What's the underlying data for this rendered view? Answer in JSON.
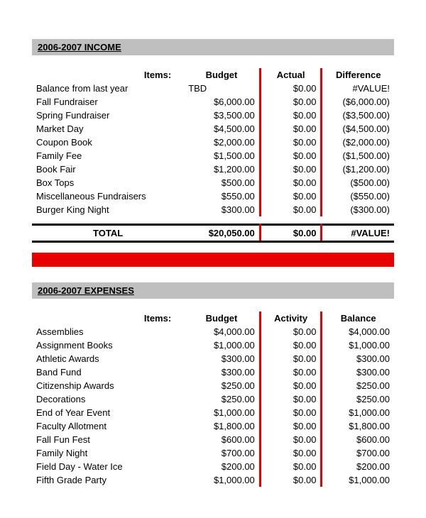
{
  "income": {
    "header": "2006-2007 INCOME",
    "columns": {
      "items": "Items:",
      "budget": "Budget",
      "actual": "Actual",
      "diff": "Difference"
    },
    "rows": [
      {
        "name": "Balance from last year",
        "budget": "TBD",
        "actual": "$0.00",
        "diff": "#VALUE!"
      },
      {
        "name": "Fall Fundraiser",
        "budget": "$6,000.00",
        "actual": "$0.00",
        "diff": "($6,000.00)"
      },
      {
        "name": "Spring Fundraiser",
        "budget": "$3,500.00",
        "actual": "$0.00",
        "diff": "($3,500.00)"
      },
      {
        "name": "Market Day",
        "budget": "$4,500.00",
        "actual": "$0.00",
        "diff": "($4,500.00)"
      },
      {
        "name": "Coupon Book",
        "budget": "$2,000.00",
        "actual": "$0.00",
        "diff": "($2,000.00)"
      },
      {
        "name": "Family Fee",
        "budget": "$1,500.00",
        "actual": "$0.00",
        "diff": "($1,500.00)"
      },
      {
        "name": "Book Fair",
        "budget": "$1,200.00",
        "actual": "$0.00",
        "diff": "($1,200.00)"
      },
      {
        "name": "Box Tops",
        "budget": "$500.00",
        "actual": "$0.00",
        "diff": "($500.00)"
      },
      {
        "name": "Miscellaneous Fundraisers",
        "budget": "$550.00",
        "actual": "$0.00",
        "diff": "($550.00)"
      },
      {
        "name": "Burger King Night",
        "budget": "$300.00",
        "actual": "$0.00",
        "diff": "($300.00)"
      }
    ],
    "total": {
      "label": "TOTAL",
      "budget": "$20,050.00",
      "actual": "$0.00",
      "diff": "#VALUE!"
    }
  },
  "expenses": {
    "header": "2006-2007 EXPENSES",
    "columns": {
      "items": "Items:",
      "budget": "Budget",
      "activity": "Activity",
      "balance": "Balance"
    },
    "rows": [
      {
        "name": "Assemblies",
        "budget": "$4,000.00",
        "activity": "$0.00",
        "balance": "$4,000.00"
      },
      {
        "name": "Assignment Books",
        "budget": "$1,000.00",
        "activity": "$0.00",
        "balance": "$1,000.00"
      },
      {
        "name": "Athletic Awards",
        "budget": "$300.00",
        "activity": "$0.00",
        "balance": "$300.00"
      },
      {
        "name": "Band Fund",
        "budget": "$300.00",
        "activity": "$0.00",
        "balance": "$300.00"
      },
      {
        "name": "Citizenship Awards",
        "budget": "$250.00",
        "activity": "$0.00",
        "balance": "$250.00"
      },
      {
        "name": "Decorations",
        "budget": "$250.00",
        "activity": "$0.00",
        "balance": "$250.00"
      },
      {
        "name": "End of Year Event",
        "budget": "$1,000.00",
        "activity": "$0.00",
        "balance": "$1,000.00"
      },
      {
        "name": "Faculty Allotment",
        "budget": "$1,800.00",
        "activity": "$0.00",
        "balance": "$1,800.00"
      },
      {
        "name": "Fall Fun Fest",
        "budget": "$600.00",
        "activity": "$0.00",
        "balance": "$600.00"
      },
      {
        "name": "Family Night",
        "budget": "$700.00",
        "activity": "$0.00",
        "balance": "$700.00"
      },
      {
        "name": "Field Day - Water Ice",
        "budget": "$200.00",
        "activity": "$0.00",
        "balance": "$200.00"
      },
      {
        "name": "Fifth Grade Party",
        "budget": "$1,000.00",
        "activity": "$0.00",
        "balance": "$1,000.00"
      }
    ]
  },
  "colors": {
    "red": "#e60000",
    "headerBg": "#bfbfbf"
  }
}
